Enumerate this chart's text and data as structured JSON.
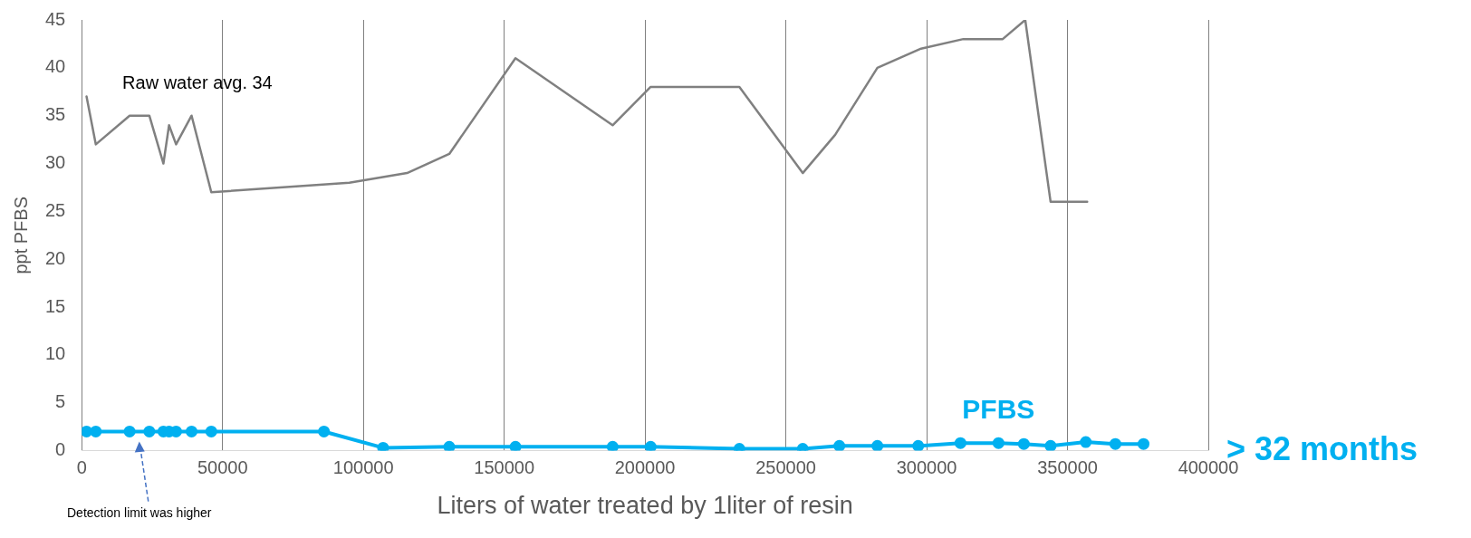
{
  "chart_data": {
    "type": "line",
    "xlabel": "Liters of water treated by 1liter of resin",
    "ylabel": "ppt PFBS",
    "xlim": [
      0,
      400000
    ],
    "xticks": [
      0,
      50000,
      100000,
      150000,
      200000,
      250000,
      300000,
      350000,
      400000
    ],
    "ylim": [
      0,
      45
    ],
    "yticks": [
      0,
      5,
      10,
      15,
      20,
      25,
      30,
      35,
      40,
      45
    ],
    "grid": "x",
    "series": [
      {
        "name": "Raw water avg. 34",
        "color": "#808080",
        "marker": "none",
        "x": [
          1700,
          5000,
          17000,
          24000,
          29000,
          31000,
          33500,
          39000,
          46000,
          95000,
          115500,
          130500,
          154000,
          188500,
          202000,
          233500,
          256000,
          267500,
          282500,
          298000,
          313000,
          327000,
          335000,
          344000,
          357000
        ],
        "values": [
          37,
          32,
          35,
          35,
          30,
          34,
          32,
          35,
          27,
          28,
          29,
          31,
          41,
          34,
          38,
          38,
          29,
          33,
          40,
          42,
          43,
          43,
          45,
          26,
          26
        ]
      },
      {
        "name": "PFBS",
        "color": "#00b0f0",
        "marker": "circle",
        "x": [
          1700,
          5000,
          17000,
          24000,
          29000,
          31000,
          33500,
          39000,
          46000,
          86000,
          107000,
          130500,
          154000,
          188500,
          202000,
          233500,
          256000,
          269000,
          282500,
          297000,
          312000,
          325500,
          334500,
          344000,
          356500,
          367000,
          377000
        ],
        "values": [
          2,
          2,
          2,
          2,
          2,
          2,
          2,
          2,
          2,
          2,
          0.3,
          0.4,
          0.4,
          0.4,
          0.4,
          0.2,
          0.2,
          0.5,
          0.5,
          0.5,
          0.8,
          0.8,
          0.7,
          0.5,
          0.9,
          0.7,
          0.7
        ]
      }
    ],
    "annotations": [
      "Detection limit was higher",
      "> 32 months"
    ]
  }
}
